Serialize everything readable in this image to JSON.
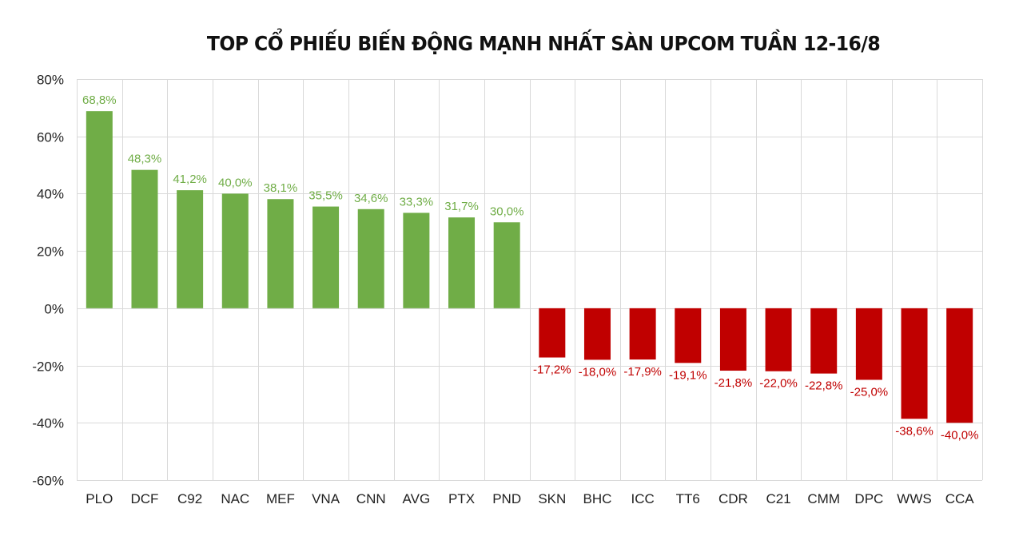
{
  "chart_data": {
    "type": "bar",
    "title": "TOP CỔ PHIẾU BIẾN ĐỘNG MẠNH NHẤT SÀN UPCOM TUẦN 12-16/8",
    "categories": [
      "PLO",
      "DCF",
      "C92",
      "NAC",
      "MEF",
      "VNA",
      "CNN",
      "AVG",
      "PTX",
      "PND",
      "SKN",
      "BHC",
      "ICC",
      "TT6",
      "CDR",
      "C21",
      "CMM",
      "DPC",
      "WWS",
      "CCA"
    ],
    "values": [
      68.8,
      48.3,
      41.2,
      40.0,
      38.1,
      35.5,
      34.6,
      33.3,
      31.7,
      30.0,
      -17.2,
      -18.0,
      -17.9,
      -19.1,
      -21.8,
      -22.0,
      -22.8,
      -25.0,
      -38.6,
      -40.0
    ],
    "data_labels": [
      "68,8%",
      "48,3%",
      "41,2%",
      "40,0%",
      "38,1%",
      "35,5%",
      "34,6%",
      "33,3%",
      "31,7%",
      "30,0%",
      "-17,2%",
      "-18,0%",
      "-17,9%",
      "-19,1%",
      "-21,8%",
      "-22,0%",
      "-22,8%",
      "-25,0%",
      "-38,6%",
      "-40,0%"
    ],
    "y_ticks": [
      80,
      60,
      40,
      20,
      0,
      -20,
      -40,
      -60
    ],
    "y_tick_labels": [
      "80%",
      "60%",
      "40%",
      "20%",
      "0%",
      "-20%",
      "-40%",
      "-60%"
    ],
    "ylim": [
      -60,
      80
    ],
    "xlabel": "",
    "ylabel": "",
    "grid": true,
    "legend": "none",
    "colors": {
      "positive": "#70ad47",
      "negative": "#c00000",
      "grid": "#d9d9d9"
    }
  }
}
